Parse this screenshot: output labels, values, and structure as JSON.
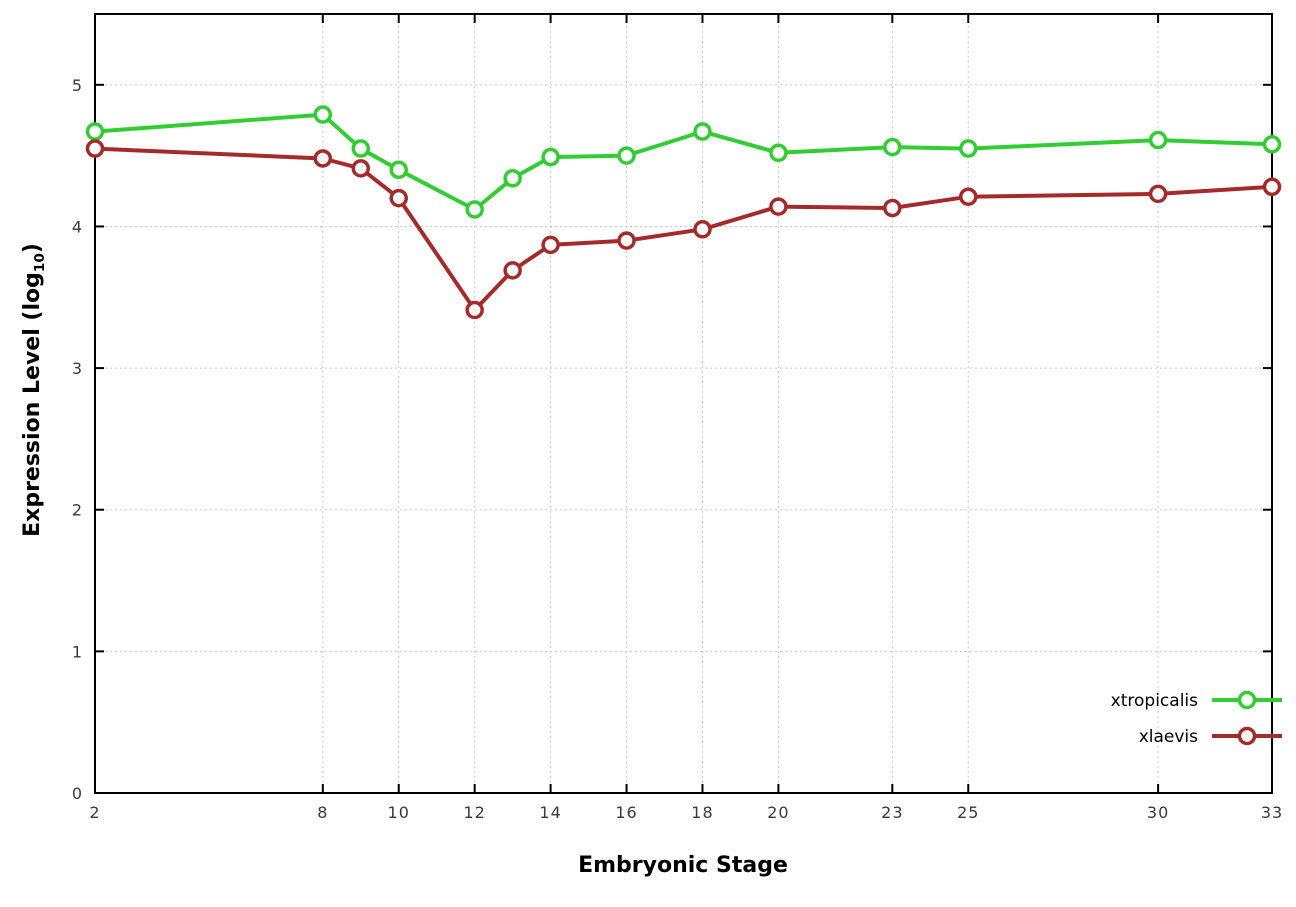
{
  "labels": {
    "x": "Embryonic Stage",
    "y_pre": "Expression Level (log",
    "y_sub": "10",
    "y_post": ")"
  },
  "chart_data": {
    "type": "line",
    "title": "",
    "xlabel": "Embryonic Stage",
    "ylabel": "Expression Level (log10)",
    "x": [
      2,
      8,
      9,
      10,
      12,
      13,
      14,
      16,
      18,
      20,
      23,
      25,
      30,
      33
    ],
    "series": [
      {
        "name": "xtropicalis",
        "color": "#32cd32",
        "values": [
          4.67,
          4.79,
          4.55,
          4.4,
          4.12,
          4.34,
          4.49,
          4.5,
          4.67,
          4.52,
          4.56,
          4.55,
          4.61,
          4.58
        ]
      },
      {
        "name": "xlaevis",
        "color": "#a52a2a",
        "values": [
          4.55,
          4.48,
          4.41,
          4.2,
          3.41,
          3.69,
          3.87,
          3.9,
          3.98,
          4.14,
          4.13,
          4.21,
          4.23,
          4.28
        ]
      }
    ],
    "xlim": [
      2,
      33
    ],
    "ylim": [
      0,
      5.5
    ],
    "x_ticks": [
      {
        "v": 2,
        "label": "2"
      },
      {
        "v": 8,
        "label": "8"
      },
      {
        "v": 10,
        "label": "10"
      },
      {
        "v": 12,
        "label": "12"
      },
      {
        "v": 14,
        "label": "14"
      },
      {
        "v": 16,
        "label": "16"
      },
      {
        "v": 18,
        "label": "18"
      },
      {
        "v": 20,
        "label": "20"
      },
      {
        "v": 23,
        "label": "23"
      },
      {
        "v": 25,
        "label": "25"
      },
      {
        "v": 30,
        "label": "30"
      },
      {
        "v": 33,
        "label": "33"
      }
    ],
    "y_ticks": [
      {
        "v": 0,
        "label": "0"
      },
      {
        "v": 1,
        "label": "1"
      },
      {
        "v": 2,
        "label": "2"
      },
      {
        "v": 3,
        "label": "3"
      },
      {
        "v": 4,
        "label": "4"
      },
      {
        "v": 5,
        "label": "5"
      }
    ],
    "grid": true,
    "grid_color": "#c8c8c8",
    "axis_color": "#000000",
    "tick_text_color": "#3a3a3a",
    "marker": "open-circle",
    "legend_position": "inside-bottom-right",
    "legend_entries": [
      "xtropicalis",
      "xlaevis"
    ]
  }
}
